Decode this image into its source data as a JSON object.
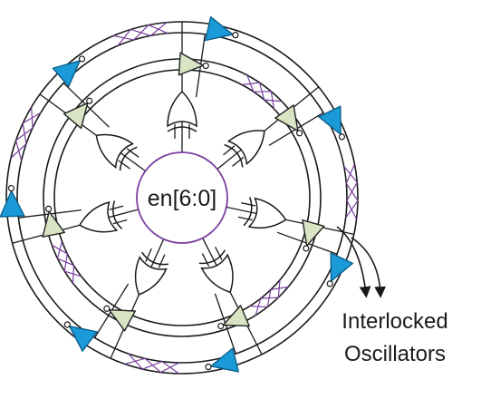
{
  "center_label": "en[6:0]",
  "output_label": {
    "line1": "Interlocked",
    "line2": "Oscillators"
  },
  "colors": {
    "stroke": "#1a1a1a",
    "enable_circle": "#7b3fa0",
    "crossover_wires": "#7b3fa0",
    "outer_inverter_fill": "#1a9ad6",
    "outer_inverter_stroke": "#0b5f8c",
    "inner_inverter_fill": "#d8e4c4",
    "inner_inverter_stroke": "#222222",
    "xor_gate_fill": "#ffffff"
  },
  "icons": {
    "outer_ring_buffers": "triangle-buffer-icon",
    "inner_ring_buffers": "triangle-buffer-icon",
    "gates": "xor-gate-icon",
    "output_arrows": "arrow-down-icon"
  },
  "counts": {
    "outer_ring_buffers": 7,
    "inner_ring_buffers": 7,
    "xor_gates": 7
  }
}
